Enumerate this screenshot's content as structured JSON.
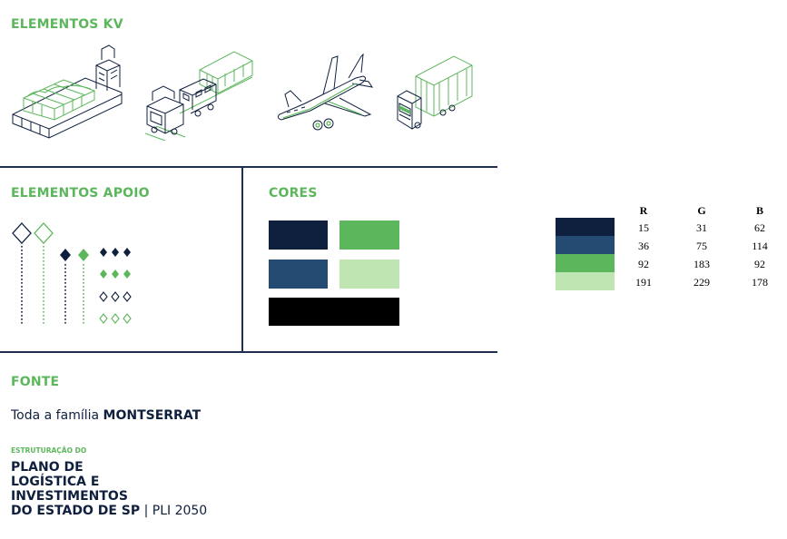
{
  "kv": {
    "heading": "ELEMENTOS KV",
    "icons": [
      "ship-icon",
      "train-icon",
      "airplane-icon",
      "truck-icon"
    ]
  },
  "apoio": {
    "heading": "ELEMENTOS APOIO"
  },
  "cores": {
    "heading": "CORES",
    "colors": {
      "navy": "#0f1f3e",
      "blue": "#244b72",
      "green": "#5cb75c",
      "light_green": "#bfe5b2",
      "black": "#000000"
    }
  },
  "rgb_table": {
    "headers": [
      "R",
      "G",
      "B"
    ],
    "rows": [
      {
        "color": "#0f1f3e",
        "r": "15",
        "g": "31",
        "b": "62"
      },
      {
        "color": "#244b72",
        "r": "36",
        "g": "75",
        "b": "114"
      },
      {
        "color": "#5cb75c",
        "r": "92",
        "g": "183",
        "b": "92"
      },
      {
        "color": "#bfe5b2",
        "r": "191",
        "g": "229",
        "b": "178"
      }
    ]
  },
  "fonte": {
    "heading": "FONTE",
    "prefix": "Toda a família ",
    "font_name": "MONTSERRAT"
  },
  "logo": {
    "small": "ESTRUTURAÇÃO DO",
    "line1": "PLANO DE",
    "line2": "LOGÍSTICA E",
    "line3": "INVESTIMENTOS",
    "line4": "DO ESTADO DE SP",
    "suffix": " | PLI 2050"
  }
}
